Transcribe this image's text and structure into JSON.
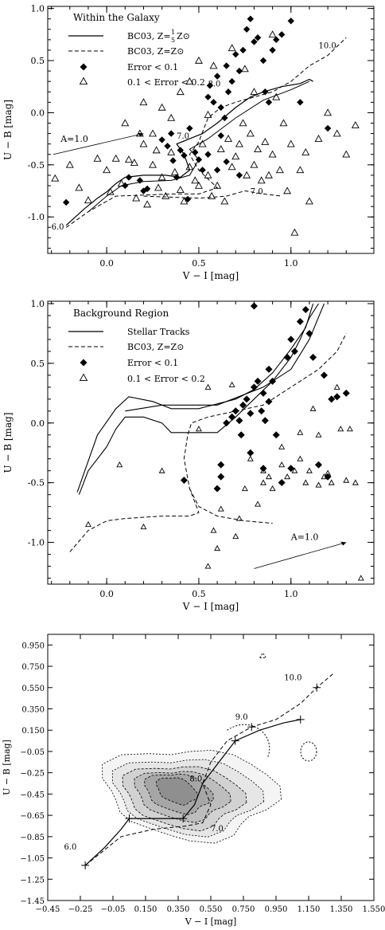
{
  "chart_data": [
    {
      "type": "scatter",
      "xlabel": "V − I [mag]",
      "ylabel": "U − B [mag]",
      "xlim": [
        -0.32,
        1.45
      ],
      "ylim": [
        -1.35,
        1.02
      ],
      "xticks": [
        0.0,
        0.5,
        1.0
      ],
      "yticks": [
        -1.0,
        -0.5,
        0.0,
        0.5,
        1.0
      ],
      "legend": {
        "placement": "top-left",
        "title": "Within the Galaxy",
        "entries": [
          "BC03, Z=1/5 Z⊙",
          "BC03, Z=Z⊙",
          "Error < 0.1",
          "0.1 < Error < 0.2"
        ]
      },
      "annotations": [
        "10.0",
        "8.0",
        "7.0",
        "6.0",
        "A_V=1.0"
      ],
      "series": [
        {
          "name": "Error < 0.1",
          "marker": "diamond-filled",
          "points": [
            [
              -0.22,
              -0.86
            ],
            [
              0.1,
              -0.7
            ],
            [
              0.12,
              -0.62
            ],
            [
              0.18,
              -0.65
            ],
            [
              0.2,
              -0.75
            ],
            [
              0.22,
              -0.73
            ],
            [
              0.3,
              -0.26
            ],
            [
              0.33,
              -0.32
            ],
            [
              0.35,
              -0.2
            ],
            [
              0.36,
              -0.46
            ],
            [
              0.38,
              -0.62
            ],
            [
              0.4,
              -0.36
            ],
            [
              0.42,
              -0.41
            ],
            [
              0.44,
              -0.83
            ],
            [
              0.45,
              -0.15
            ],
            [
              0.48,
              -0.38
            ],
            [
              0.5,
              -0.45
            ],
            [
              0.52,
              -0.55
            ],
            [
              0.55,
              0.15
            ],
            [
              0.56,
              0.26
            ],
            [
              0.58,
              0.1
            ],
            [
              0.6,
              0.35
            ],
            [
              0.62,
              0.05
            ],
            [
              0.62,
              -0.22
            ],
            [
              0.64,
              -0.05
            ],
            [
              0.65,
              0.45
            ],
            [
              0.66,
              0.2
            ],
            [
              0.68,
              0.3
            ],
            [
              0.7,
              0.56
            ],
            [
              0.72,
              0.4
            ],
            [
              0.72,
              -0.6
            ],
            [
              0.74,
              0.6
            ],
            [
              0.76,
              0.8
            ],
            [
              0.78,
              0.9
            ],
            [
              0.8,
              0.68
            ],
            [
              0.82,
              0.72
            ],
            [
              0.85,
              0.5
            ],
            [
              0.86,
              0.2
            ],
            [
              0.88,
              0.1
            ],
            [
              0.9,
              0.6
            ],
            [
              0.92,
              0.7
            ],
            [
              0.95,
              0.75
            ],
            [
              1.0,
              0.88
            ],
            [
              1.05,
              0.1
            ],
            [
              1.2,
              -0.15
            ],
            [
              0.65,
              -0.47
            ],
            [
              0.6,
              -0.55
            ],
            [
              0.55,
              -0.4
            ]
          ]
        },
        {
          "name": "0.1 < Error < 0.2",
          "marker": "triangle-open",
          "points": [
            [
              -0.28,
              -0.63
            ],
            [
              -0.2,
              -0.5
            ],
            [
              -0.15,
              -0.72
            ],
            [
              -0.1,
              -0.84
            ],
            [
              -0.05,
              -0.44
            ],
            [
              0.0,
              -0.55
            ],
            [
              0.02,
              -0.76
            ],
            [
              0.05,
              -0.44
            ],
            [
              0.08,
              -0.68
            ],
            [
              0.12,
              -0.45
            ],
            [
              0.15,
              -0.48
            ],
            [
              0.16,
              -0.82
            ],
            [
              0.18,
              -0.2
            ],
            [
              0.2,
              -0.3
            ],
            [
              0.22,
              -0.88
            ],
            [
              0.25,
              -0.5
            ],
            [
              0.27,
              -0.36
            ],
            [
              0.28,
              -0.72
            ],
            [
              0.3,
              -0.62
            ],
            [
              0.32,
              -0.8
            ],
            [
              0.35,
              -0.38
            ],
            [
              0.37,
              -0.57
            ],
            [
              0.4,
              -0.74
            ],
            [
              0.42,
              -0.85
            ],
            [
              0.45,
              -0.52
            ],
            [
              0.48,
              -0.65
            ],
            [
              0.5,
              -0.7
            ],
            [
              0.52,
              -0.3
            ],
            [
              0.55,
              -0.6
            ],
            [
              0.57,
              -0.8
            ],
            [
              0.6,
              -0.7
            ],
            [
              0.62,
              -0.35
            ],
            [
              0.64,
              -0.85
            ],
            [
              0.66,
              -0.25
            ],
            [
              0.68,
              -0.52
            ],
            [
              0.7,
              -0.42
            ],
            [
              0.72,
              -0.3
            ],
            [
              0.74,
              -0.1
            ],
            [
              0.76,
              -0.6
            ],
            [
              0.78,
              -0.2
            ],
            [
              0.8,
              -0.5
            ],
            [
              0.82,
              -0.35
            ],
            [
              0.84,
              -0.65
            ],
            [
              0.86,
              -0.28
            ],
            [
              0.88,
              -0.6
            ],
            [
              0.9,
              -0.4
            ],
            [
              0.92,
              0.15
            ],
            [
              0.94,
              -0.55
            ],
            [
              0.96,
              -0.1
            ],
            [
              0.98,
              -0.75
            ],
            [
              1.0,
              -0.3
            ],
            [
              1.02,
              -1.15
            ],
            [
              1.05,
              -0.55
            ],
            [
              1.08,
              -0.38
            ],
            [
              1.1,
              -0.85
            ],
            [
              1.15,
              -0.25
            ],
            [
              1.2,
              0.0
            ],
            [
              1.25,
              -0.2
            ],
            [
              1.3,
              -0.4
            ],
            [
              1.35,
              -0.12
            ],
            [
              0.2,
              0.1
            ],
            [
              0.45,
              0.3
            ],
            [
              0.5,
              0.5
            ],
            [
              0.68,
              0.62
            ],
            [
              0.75,
              0.42
            ],
            [
              0.9,
              0.75
            ],
            [
              0.58,
              0.45
            ],
            [
              0.4,
              0.2
            ],
            [
              0.3,
              0.05
            ],
            [
              0.1,
              -0.1
            ],
            [
              0.35,
              -0.05
            ],
            [
              0.55,
              -0.02
            ],
            [
              0.25,
              -0.2
            ],
            [
              0.8,
              0.2
            ]
          ]
        }
      ]
    },
    {
      "type": "scatter",
      "xlabel": "V − I [mag]",
      "ylabel": "U − B [mag]",
      "xlim": [
        -0.32,
        1.45
      ],
      "ylim": [
        -1.35,
        1.02
      ],
      "xticks": [
        0.0,
        0.5,
        1.0
      ],
      "yticks": [
        -1.0,
        -0.5,
        0.0,
        0.5,
        1.0
      ],
      "legend": {
        "placement": "top-left",
        "title": "Background Region",
        "entries": [
          "Stellar Tracks",
          "BC03, Z=Z⊙",
          "Error < 0.1",
          "0.1 < Error < 0.2"
        ]
      },
      "annotations": [
        "A_V=1.0"
      ],
      "series": [
        {
          "name": "Error < 0.1",
          "marker": "diamond-filled",
          "points": [
            [
              0.42,
              -0.48
            ],
            [
              0.6,
              -0.55
            ],
            [
              0.62,
              -0.45
            ],
            [
              0.65,
              0.0
            ],
            [
              0.68,
              0.05
            ],
            [
              0.7,
              0.1
            ],
            [
              0.72,
              0.02
            ],
            [
              0.74,
              0.15
            ],
            [
              0.76,
              0.2
            ],
            [
              0.78,
              0.08
            ],
            [
              0.8,
              0.3
            ],
            [
              0.82,
              0.35
            ],
            [
              0.84,
              0.1
            ],
            [
              0.85,
              0.25
            ],
            [
              0.86,
              0.02
            ],
            [
              0.88,
              0.45
            ],
            [
              0.88,
              0.18
            ],
            [
              0.9,
              0.35
            ],
            [
              0.92,
              -0.1
            ],
            [
              0.95,
              -0.5
            ],
            [
              0.98,
              0.55
            ],
            [
              1.0,
              0.7
            ],
            [
              1.02,
              0.6
            ],
            [
              1.05,
              0.85
            ],
            [
              1.08,
              0.95
            ],
            [
              1.1,
              0.75
            ],
            [
              1.12,
              0.55
            ],
            [
              1.15,
              -0.35
            ],
            [
              1.18,
              0.4
            ],
            [
              1.2,
              -0.45
            ],
            [
              1.22,
              0.2
            ],
            [
              1.25,
              0.22
            ],
            [
              1.3,
              0.25
            ],
            [
              0.8,
              0.98
            ],
            [
              0.73,
              -0.1
            ],
            [
              0.85,
              -0.38
            ],
            [
              0.78,
              -0.25
            ],
            [
              0.62,
              -0.35
            ],
            [
              1.0,
              -0.38
            ]
          ]
        },
        {
          "name": "0.1 < Error < 0.2",
          "marker": "triangle-open",
          "points": [
            [
              -0.1,
              -0.85
            ],
            [
              0.07,
              -0.35
            ],
            [
              0.2,
              -0.87
            ],
            [
              0.3,
              -0.4
            ],
            [
              0.5,
              -0.05
            ],
            [
              0.55,
              -1.2
            ],
            [
              0.58,
              -0.9
            ],
            [
              0.6,
              -1.05
            ],
            [
              0.62,
              -0.72
            ],
            [
              0.7,
              -0.95
            ],
            [
              0.72,
              -0.8
            ],
            [
              0.75,
              -0.55
            ],
            [
              0.78,
              -0.3
            ],
            [
              0.82,
              -0.68
            ],
            [
              0.85,
              -0.4
            ],
            [
              0.88,
              -0.45
            ],
            [
              0.9,
              -0.55
            ],
            [
              0.95,
              -0.2
            ],
            [
              0.98,
              -0.45
            ],
            [
              1.02,
              -0.4
            ],
            [
              1.05,
              -0.08
            ],
            [
              1.08,
              -0.5
            ],
            [
              1.1,
              -0.4
            ],
            [
              1.12,
              0.12
            ],
            [
              1.15,
              -0.1
            ],
            [
              1.18,
              -0.45
            ],
            [
              1.2,
              -0.42
            ],
            [
              1.22,
              -0.5
            ],
            [
              1.25,
              0.3
            ],
            [
              1.27,
              -0.05
            ],
            [
              1.3,
              -0.48
            ],
            [
              1.32,
              -0.05
            ],
            [
              1.35,
              -0.5
            ],
            [
              1.38,
              -1.3
            ],
            [
              0.55,
              0.3
            ],
            [
              0.68,
              0.32
            ],
            [
              0.85,
              -0.5
            ],
            [
              1.05,
              -0.3
            ],
            [
              1.15,
              -0.52
            ],
            [
              0.95,
              -0.35
            ]
          ]
        }
      ]
    },
    {
      "type": "contour",
      "xlabel": "V − I [mag]",
      "ylabel": "U − B [mag]",
      "xlim": [
        -0.45,
        1.55
      ],
      "ylim": [
        -1.45,
        1.05
      ],
      "xticks": [
        "−0.45",
        "−0.25",
        "−0.05",
        "0.150",
        "0.350",
        "0.550",
        "0.750",
        "0.950",
        "1.150",
        "1.350",
        "1.550"
      ],
      "yticks": [
        "−1.45",
        "−1.25",
        "−1.05",
        "−0.85",
        "−0.65",
        "−0.45",
        "−0.25",
        "−0.05",
        "0.150",
        "0.350",
        "0.550",
        "0.750",
        "0.950"
      ],
      "annotations": [
        "10.0",
        "9.0",
        "8.0",
        "7.0",
        "6.0"
      ],
      "grid": false
    }
  ]
}
